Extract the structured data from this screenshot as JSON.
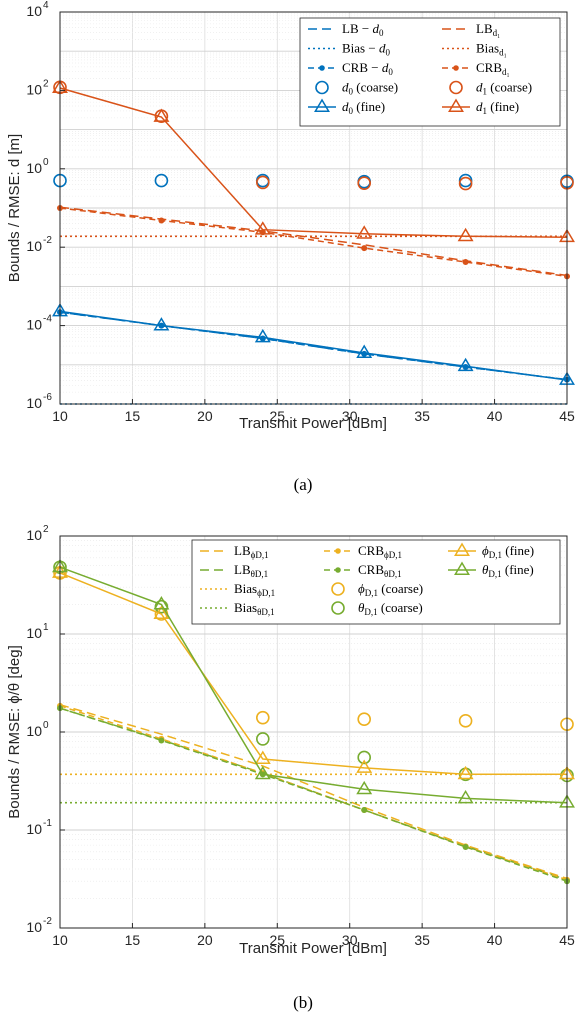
{
  "colors": {
    "blue": "#0072BD",
    "orange": "#D95319",
    "yellow": "#EDB120",
    "green": "#77AC30"
  },
  "chart_data": [
    {
      "type": "line",
      "caption": "(a)",
      "xlabel": "Transmit Power [dBm]",
      "ylabel": "Bounds / RMSE: d [m]",
      "yscale": "log",
      "xlim": [
        10,
        45
      ],
      "ylim": [
        1e-06,
        10000.0
      ],
      "xticks": [
        "10",
        "15",
        "20",
        "25",
        "30",
        "35",
        "40",
        "45"
      ],
      "yticks": [
        {
          "base": "10",
          "exp": "-6"
        },
        {
          "base": "10",
          "exp": "-4"
        },
        {
          "base": "10",
          "exp": "-2"
        },
        {
          "base": "10",
          "exp": "0"
        },
        {
          "base": "10",
          "exp": "2"
        },
        {
          "base": "10",
          "exp": "4"
        }
      ],
      "grid": true,
      "legend_position": "top-right",
      "x": [
        10,
        17,
        24,
        31,
        38,
        45
      ],
      "series": [
        {
          "label": {
            "main": "LB − ",
            "var": "d",
            "sub": "0"
          },
          "color": "#0072BD",
          "style": "dashed",
          "marker": "none",
          "values": [
            0.00022,
            0.0001,
            4.7e-05,
            1.9e-05,
            8.8e-06,
            4.2e-06
          ]
        },
        {
          "label": {
            "main": "LB",
            "var": "",
            "sub": "d₁"
          },
          "color": "#D95319",
          "style": "dashed",
          "marker": "none",
          "values": [
            0.105,
            0.052,
            0.026,
            0.0115,
            0.0045,
            0.0019
          ]
        },
        {
          "label": {
            "main": "Bias − ",
            "var": "d",
            "sub": "0"
          },
          "color": "#0072BD",
          "style": "dotted",
          "marker": "none",
          "values": [
            1e-06,
            1e-06,
            1e-06,
            1e-06,
            1e-06,
            1e-06
          ]
        },
        {
          "label": {
            "main": "Bias",
            "var": "",
            "sub": "d₁"
          },
          "color": "#D95319",
          "style": "dotted",
          "marker": "none",
          "values": [
            0.019,
            0.019,
            0.019,
            0.019,
            0.019,
            0.019
          ]
        },
        {
          "label": {
            "main": "CRB − ",
            "var": "d",
            "sub": "0"
          },
          "color": "#0072BD",
          "style": "dashdot-dot",
          "marker": "dot",
          "values": [
            0.00022,
            0.0001,
            4.7e-05,
            1.9e-05,
            8.8e-06,
            4.2e-06
          ]
        },
        {
          "label": {
            "main": "CRB",
            "var": "",
            "sub": "d₁"
          },
          "color": "#D95319",
          "style": "dashdot-dot",
          "marker": "dot",
          "values": [
            0.1,
            0.048,
            0.024,
            0.0095,
            0.0042,
            0.0018
          ]
        },
        {
          "label": {
            "main": "",
            "var": "d",
            "sub": "0",
            "after": " (coarse)"
          },
          "color": "#0072BD",
          "style": "none",
          "marker": "circle",
          "values": [
            0.5,
            0.5,
            0.5,
            0.47,
            0.5,
            0.48
          ]
        },
        {
          "label": {
            "main": "",
            "var": "d",
            "sub": "1",
            "after": " (coarse)"
          },
          "color": "#D95319",
          "style": "none",
          "marker": "circle",
          "values": [
            120,
            22,
            0.45,
            0.43,
            0.42,
            0.44
          ]
        },
        {
          "label": {
            "main": "",
            "var": "d",
            "sub": "0",
            "after": " (fine)"
          },
          "color": "#0072BD",
          "style": "solid",
          "marker": "triangle",
          "values": [
            0.00023,
            0.0001,
            5e-05,
            2e-05,
            9.2e-06,
            4.1e-06
          ]
        },
        {
          "label": {
            "main": "",
            "var": "d",
            "sub": "1",
            "after": " (fine)"
          },
          "color": "#D95319",
          "style": "solid",
          "marker": "triangle",
          "values": [
            115,
            21,
            0.028,
            0.022,
            0.019,
            0.018
          ]
        }
      ]
    },
    {
      "type": "line",
      "caption": "(b)",
      "xlabel": "Transmit Power [dBm]",
      "ylabel": "Bounds / RMSE: ϕ/θ [deg]",
      "yscale": "log",
      "xlim": [
        10,
        45
      ],
      "ylim": [
        0.01,
        100
      ],
      "xticks": [
        "10",
        "15",
        "20",
        "25",
        "30",
        "35",
        "40",
        "45"
      ],
      "yticks": [
        {
          "base": "10",
          "exp": "-2"
        },
        {
          "base": "10",
          "exp": "-1"
        },
        {
          "base": "10",
          "exp": "0"
        },
        {
          "base": "10",
          "exp": "1"
        },
        {
          "base": "10",
          "exp": "2"
        }
      ],
      "grid": true,
      "legend_position": "top-right",
      "x": [
        10,
        17,
        24,
        31,
        38,
        45
      ],
      "series": [
        {
          "label": {
            "main": "LB",
            "var": "",
            "sub": "ϕD,1"
          },
          "color": "#EDB120",
          "style": "dashed",
          "marker": "none",
          "values": [
            1.9,
            0.95,
            0.45,
            0.17,
            0.07,
            0.032
          ]
        },
        {
          "label": {
            "main": "LB",
            "var": "",
            "sub": "θD,1"
          },
          "color": "#77AC30",
          "style": "dashed",
          "marker": "none",
          "values": [
            1.75,
            0.83,
            0.38,
            0.16,
            0.068,
            0.031
          ]
        },
        {
          "label": {
            "main": "Bias",
            "var": "",
            "sub": "ϕD,1"
          },
          "color": "#EDB120",
          "style": "dotted",
          "marker": "none",
          "values": [
            0.37,
            0.37,
            0.37,
            0.37,
            0.37,
            0.37
          ]
        },
        {
          "label": {
            "main": "Bias",
            "var": "",
            "sub": "θD,1"
          },
          "color": "#77AC30",
          "style": "dotted",
          "marker": "none",
          "values": [
            0.19,
            0.19,
            0.19,
            0.19,
            0.19,
            0.19
          ]
        },
        {
          "label": {
            "main": "CRB",
            "var": "",
            "sub": "ϕD,1"
          },
          "color": "#EDB120",
          "style": "dashdot-dot",
          "marker": "dot",
          "values": [
            1.85,
            0.85,
            0.38,
            0.16,
            0.068,
            0.031
          ]
        },
        {
          "label": {
            "main": "CRB",
            "var": "",
            "sub": "θD,1"
          },
          "color": "#77AC30",
          "style": "dashdot-dot",
          "marker": "dot",
          "values": [
            1.75,
            0.82,
            0.37,
            0.16,
            0.067,
            0.03
          ]
        },
        {
          "label": {
            "main": "",
            "var": "ϕ",
            "sub": "D,1",
            "after": " (coarse)"
          },
          "color": "#EDB120",
          "style": "none",
          "marker": "circle",
          "values": [
            42,
            16,
            1.4,
            1.35,
            1.3,
            1.2
          ]
        },
        {
          "label": {
            "main": "",
            "var": "θ",
            "sub": "D,1",
            "after": " (coarse)"
          },
          "color": "#77AC30",
          "style": "none",
          "marker": "circle",
          "values": [
            48,
            19,
            0.85,
            0.55,
            0.37,
            0.36
          ]
        },
        {
          "label": {
            "main": "",
            "var": "ϕ",
            "sub": "D,1",
            "after": " (fine)"
          },
          "color": "#EDB120",
          "style": "solid",
          "marker": "triangle",
          "values": [
            42,
            16,
            0.53,
            0.43,
            0.37,
            0.37
          ]
        },
        {
          "label": {
            "main": "",
            "var": "θ",
            "sub": "D,1",
            "after": " (fine)"
          },
          "color": "#77AC30",
          "style": "solid",
          "marker": "triangle",
          "values": [
            48,
            20,
            0.37,
            0.26,
            0.21,
            0.19
          ]
        }
      ]
    }
  ]
}
